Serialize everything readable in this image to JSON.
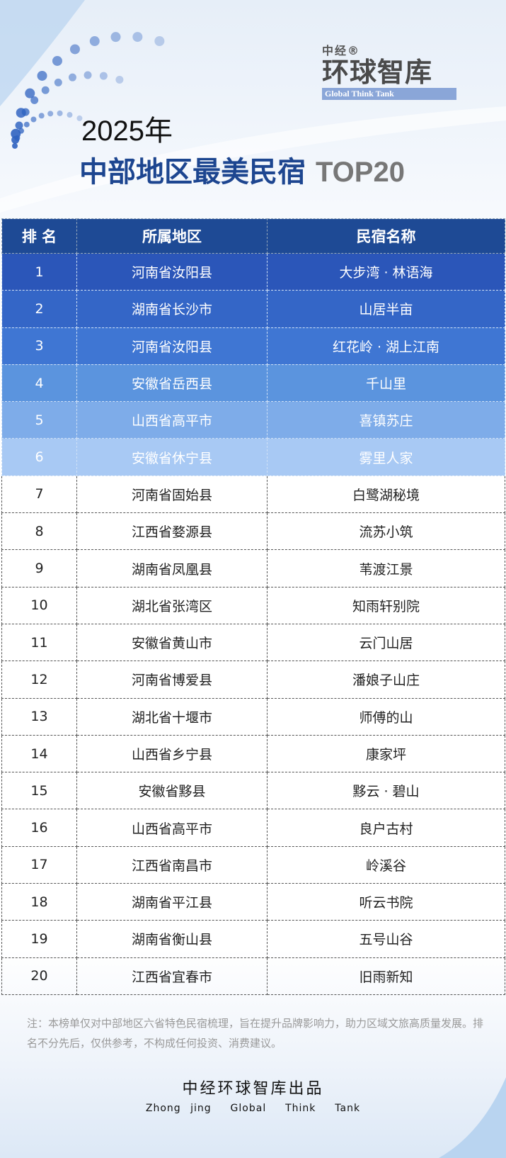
{
  "logo": {
    "small": "中经®",
    "big": "环球智库",
    "en": "Global Think Tank"
  },
  "header": {
    "year": "2025年",
    "title": "中部地区最美民宿",
    "title_suffix": "TOP20"
  },
  "table": {
    "columns": [
      "排 名",
      "所属地区",
      "民宿名称"
    ],
    "highlight_colors": [
      "#2b56b9",
      "#3466c7",
      "#3f76d3",
      "#5b94de",
      "#7eace9",
      "#a8c9f4"
    ],
    "rows": [
      {
        "rank": "1",
        "region": "河南省汝阳县",
        "name": "大步湾 · 林语海"
      },
      {
        "rank": "2",
        "region": "湖南省长沙市",
        "name": "山居半亩"
      },
      {
        "rank": "3",
        "region": "河南省汝阳县",
        "name": "红花岭 · 湖上江南"
      },
      {
        "rank": "4",
        "region": "安徽省岳西县",
        "name": "千山里"
      },
      {
        "rank": "5",
        "region": "山西省高平市",
        "name": "喜镇苏庄"
      },
      {
        "rank": "6",
        "region": "安徽省休宁县",
        "name": "雾里人家"
      },
      {
        "rank": "7",
        "region": "河南省固始县",
        "name": "白鹭湖秘境"
      },
      {
        "rank": "8",
        "region": "江西省婺源县",
        "name": "流苏小筑"
      },
      {
        "rank": "9",
        "region": "湖南省凤凰县",
        "name": "苇渡江景"
      },
      {
        "rank": "10",
        "region": "湖北省张湾区",
        "name": "知雨轩别院"
      },
      {
        "rank": "11",
        "region": "安徽省黄山市",
        "name": "云门山居"
      },
      {
        "rank": "12",
        "region": "河南省博爱县",
        "name": "潘娘子山庄"
      },
      {
        "rank": "13",
        "region": "湖北省十堰市",
        "name": "师傅的山"
      },
      {
        "rank": "14",
        "region": "山西省乡宁县",
        "name": "康家坪"
      },
      {
        "rank": "15",
        "region": "安徽省黟县",
        "name": "黟云 · 碧山"
      },
      {
        "rank": "16",
        "region": "山西省高平市",
        "name": "良户古村"
      },
      {
        "rank": "17",
        "region": "江西省南昌市",
        "name": "岭溪谷"
      },
      {
        "rank": "18",
        "region": "湖南省平江县",
        "name": "听云书院"
      },
      {
        "rank": "19",
        "region": "湖南省衡山县",
        "name": "五号山谷"
      },
      {
        "rank": "20",
        "region": "江西省宜春市",
        "name": "旧雨新知"
      }
    ]
  },
  "note": "注：本榜单仅对中部地区六省特色民宿梳理，旨在提升品牌影响力，助力区域文旅高质量发展。排名不分先后，仅供参考，不构成任何投资、消费建议。",
  "footer": {
    "cn": "中经环球智库出品",
    "en": "Zhong jing  Global  Think  Tank"
  }
}
